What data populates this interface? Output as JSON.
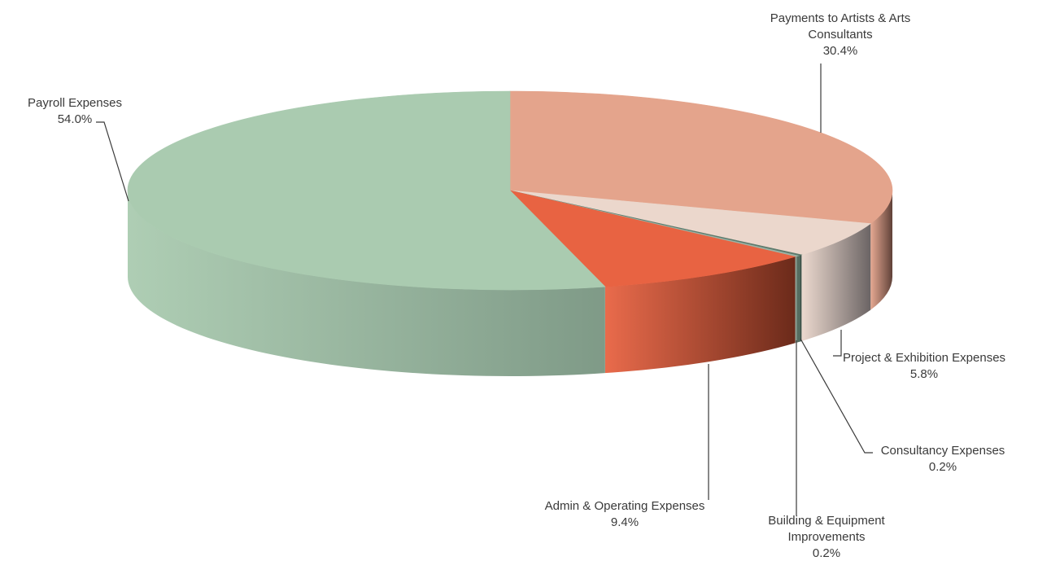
{
  "chart_data": {
    "type": "pie",
    "title": "",
    "slices": [
      {
        "name_lines": [
          "Payments to Artists & Arts",
          "Consultants"
        ],
        "value": 30.4,
        "label": "30.4%",
        "color": "#e4a48c",
        "side_color": "#5f4138"
      },
      {
        "name_lines": [
          "Project & Exhibition Expenses"
        ],
        "value": 5.8,
        "label": "5.8%",
        "color": "#ebd7cc",
        "side_color": "#6b6464"
      },
      {
        "name_lines": [
          "Consultancy Expenses"
        ],
        "value": 0.2,
        "label": "0.2%",
        "color": "#5d7a6c",
        "side_color": "#2f433a"
      },
      {
        "name_lines": [
          "Building & Equipment",
          "Improvements"
        ],
        "value": 0.2,
        "label": "0.2%",
        "color": "#9bb3a5",
        "side_color": "#3f5247"
      },
      {
        "name_lines": [
          "Admin & Operating Expenses"
        ],
        "value": 9.4,
        "label": "9.4%",
        "color": "#e86342",
        "side_color": "#6b2a1a"
      },
      {
        "name_lines": [
          "Payroll Expenses"
        ],
        "value": 54.0,
        "label": "54.0%",
        "color": "#aacbb0",
        "side_color": "#7f9a87"
      }
    ]
  }
}
